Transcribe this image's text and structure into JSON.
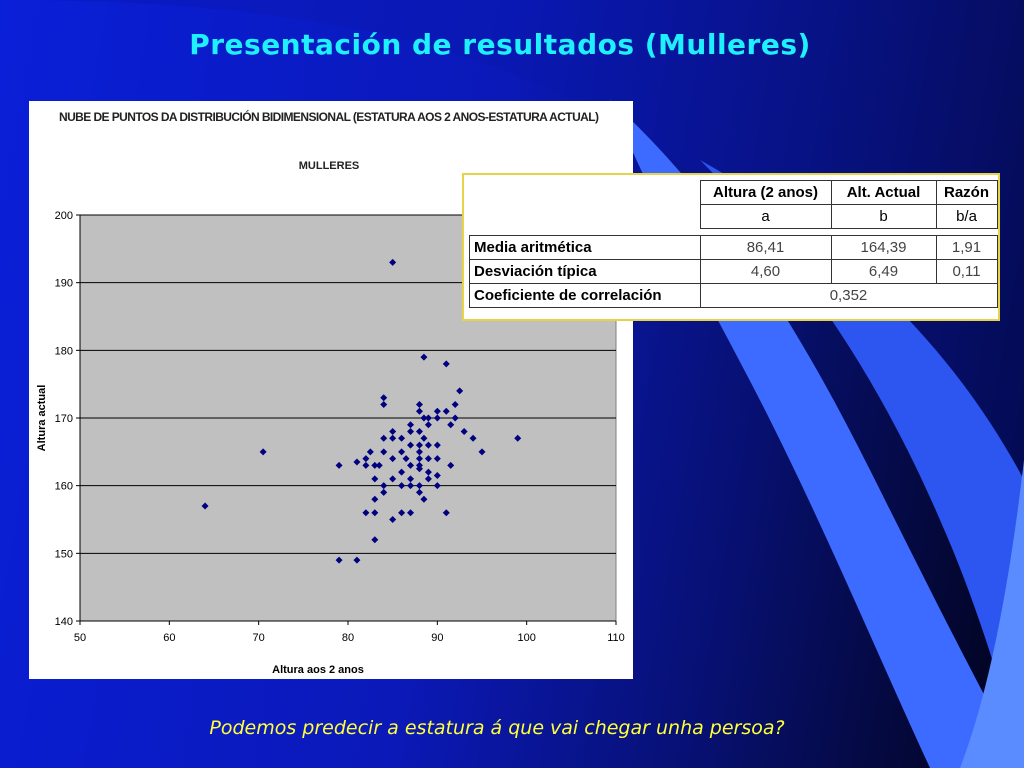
{
  "slide": {
    "title": "Presentación de resultados  (Mulleres)",
    "question": "Podemos predecir a estatura á que vai chegar unha persoa?"
  },
  "colors": {
    "title": "#1ff0ff",
    "question": "#ffff3a",
    "plot_bg": "#c0c0c0",
    "point": "#000080"
  },
  "chart_data": {
    "type": "scatter",
    "title": "Nube de puntos da distribución bidimensional (Estatura aos 2 anos-estatura actual)",
    "subtitle": "MULLERES",
    "xlabel": "Altura aos 2 anos",
    "ylabel": "Altura actual",
    "xlim": [
      50,
      110
    ],
    "ylim": [
      140,
      200
    ],
    "xticks": [
      50,
      60,
      70,
      80,
      90,
      100,
      110
    ],
    "yticks": [
      140,
      150,
      160,
      170,
      180,
      190,
      200
    ],
    "grid": "horizontal",
    "legend": "none",
    "marker": "diamond",
    "points": [
      [
        85,
        193
      ],
      [
        88.5,
        179
      ],
      [
        91,
        178
      ],
      [
        92.5,
        174
      ],
      [
        84,
        173
      ],
      [
        84,
        172
      ],
      [
        88,
        172
      ],
      [
        92,
        172
      ],
      [
        88,
        171
      ],
      [
        90,
        171
      ],
      [
        91,
        171
      ],
      [
        88.5,
        170
      ],
      [
        89,
        170
      ],
      [
        90,
        170
      ],
      [
        92,
        170
      ],
      [
        87,
        169
      ],
      [
        89,
        169
      ],
      [
        91.5,
        169
      ],
      [
        88,
        168
      ],
      [
        93,
        168
      ],
      [
        85,
        168
      ],
      [
        87,
        168
      ],
      [
        84,
        167
      ],
      [
        85,
        167
      ],
      [
        86,
        167
      ],
      [
        88.5,
        167
      ],
      [
        94,
        167
      ],
      [
        99,
        167
      ],
      [
        87,
        166
      ],
      [
        88,
        166
      ],
      [
        89,
        166
      ],
      [
        90,
        166
      ],
      [
        70.5,
        165
      ],
      [
        82.5,
        165
      ],
      [
        84,
        165
      ],
      [
        86,
        165
      ],
      [
        88,
        165
      ],
      [
        95,
        165
      ],
      [
        82,
        164
      ],
      [
        85,
        164
      ],
      [
        86.5,
        164
      ],
      [
        88,
        164
      ],
      [
        89,
        164
      ],
      [
        90,
        164
      ],
      [
        79,
        163
      ],
      [
        81,
        163.5
      ],
      [
        82,
        163
      ],
      [
        83,
        163
      ],
      [
        83.5,
        163
      ],
      [
        87,
        163
      ],
      [
        88,
        163
      ],
      [
        91.5,
        163
      ],
      [
        86,
        162
      ],
      [
        89,
        162
      ],
      [
        88,
        162.5
      ],
      [
        83,
        161
      ],
      [
        85,
        161
      ],
      [
        87,
        161
      ],
      [
        89,
        161
      ],
      [
        90,
        161.5
      ],
      [
        84,
        160
      ],
      [
        86,
        160
      ],
      [
        87,
        160
      ],
      [
        88,
        160
      ],
      [
        90,
        160
      ],
      [
        84,
        159
      ],
      [
        88,
        159
      ],
      [
        88.5,
        158
      ],
      [
        83,
        158
      ],
      [
        64,
        157
      ],
      [
        82,
        156
      ],
      [
        83,
        156
      ],
      [
        86,
        156
      ],
      [
        87,
        156
      ],
      [
        91,
        156
      ],
      [
        85,
        155
      ],
      [
        83,
        152
      ],
      [
        79,
        149
      ],
      [
        81,
        149
      ]
    ]
  },
  "stats_table": {
    "headers": [
      "Altura (2 anos)",
      "Alt. Actual",
      "Razón"
    ],
    "subheaders": [
      "a",
      "b",
      "b/a"
    ],
    "rows": [
      {
        "label": "Media aritmética",
        "a": "86,41",
        "b": "164,39",
        "ratio": "1,91"
      },
      {
        "label": "Desviación típica",
        "a": "4,60",
        "b": "6,49",
        "ratio": "0,11"
      }
    ],
    "correlation": {
      "label": "Coeficiente de correlación",
      "value": "0,352"
    }
  }
}
